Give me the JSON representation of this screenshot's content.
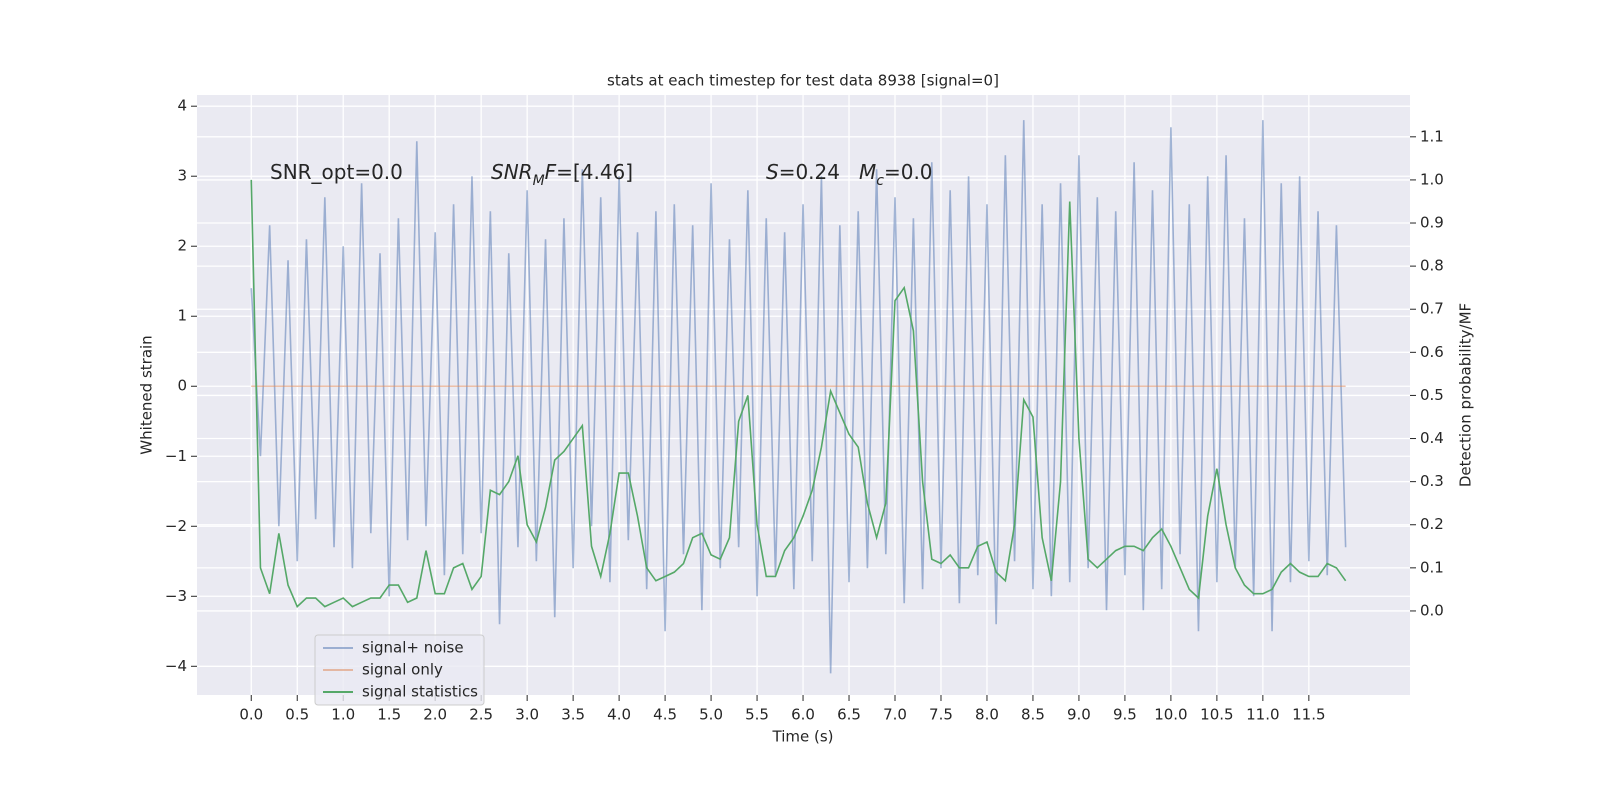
{
  "chart_data": {
    "type": "line",
    "title": "stats at each timestep for test data 8938 [signal=0]",
    "xlabel": "Time (s)",
    "ylabel": "Whitened strain",
    "y2label": "Detection probability/MF",
    "annotations": [
      [
        {
          "text": "SNR_opt=0.0",
          "style": "normal"
        }
      ],
      [
        {
          "text": "SNR",
          "style": "italic"
        },
        {
          "text": "M",
          "style": "sub"
        },
        {
          "text": "F",
          "style": "italic"
        },
        {
          "text": "=[4.46]",
          "style": "normal"
        }
      ],
      [
        {
          "text": "S",
          "style": "italic"
        },
        {
          "text": "=0.24",
          "style": "normal"
        }
      ],
      [
        {
          "text": "M",
          "style": "italic"
        },
        {
          "text": "c",
          "style": "sub"
        },
        {
          "text": "=0.0",
          "style": "normal"
        }
      ]
    ],
    "x": [
      0.0,
      0.1,
      0.2,
      0.3,
      0.4,
      0.5,
      0.6,
      0.7,
      0.8,
      0.9,
      1.0,
      1.1,
      1.2,
      1.3,
      1.4,
      1.5,
      1.6,
      1.7,
      1.8,
      1.9,
      2.0,
      2.1,
      2.2,
      2.3,
      2.4,
      2.5,
      2.6,
      2.7,
      2.8,
      2.9,
      3.0,
      3.1,
      3.2,
      3.3,
      3.4,
      3.5,
      3.6,
      3.7,
      3.8,
      3.9,
      4.0,
      4.1,
      4.2,
      4.3,
      4.4,
      4.5,
      4.6,
      4.7,
      4.8,
      4.9,
      5.0,
      5.1,
      5.2,
      5.3,
      5.4,
      5.5,
      5.6,
      5.7,
      5.8,
      5.9,
      6.0,
      6.1,
      6.2,
      6.3,
      6.4,
      6.5,
      6.6,
      6.7,
      6.8,
      6.9,
      7.0,
      7.1,
      7.2,
      7.3,
      7.4,
      7.5,
      7.6,
      7.7,
      7.8,
      7.9,
      8.0,
      8.1,
      8.2,
      8.3,
      8.4,
      8.5,
      8.6,
      8.7,
      8.8,
      8.9,
      9.0,
      9.1,
      9.2,
      9.3,
      9.4,
      9.5,
      9.6,
      9.7,
      9.8,
      9.9,
      10.0,
      10.1,
      10.2,
      10.3,
      10.4,
      10.5,
      10.6,
      10.7,
      10.8,
      10.9,
      11.0,
      11.1,
      11.2,
      11.3,
      11.4,
      11.5,
      11.6,
      11.7,
      11.8,
      11.9
    ],
    "series": [
      {
        "name": "signal+ noise",
        "color": "#4c72b0",
        "opacity": 0.5,
        "values": [
          1.4,
          -1.0,
          2.3,
          -2.0,
          1.8,
          -2.5,
          2.1,
          -1.9,
          2.7,
          -2.3,
          2.0,
          -2.6,
          2.9,
          -2.1,
          1.9,
          -3.0,
          2.4,
          -2.2,
          3.5,
          -2.0,
          2.2,
          -2.7,
          2.6,
          -2.4,
          3.0,
          -2.1,
          2.5,
          -3.4,
          1.9,
          -2.3,
          2.8,
          -2.5,
          2.1,
          -3.3,
          2.4,
          -2.6,
          3.1,
          -2.0,
          2.7,
          -2.8,
          3.0,
          -2.2,
          2.2,
          -2.9,
          2.5,
          -3.5,
          2.6,
          -2.4,
          2.3,
          -3.2,
          2.9,
          -2.6,
          2.1,
          -2.3,
          2.8,
          -3.0,
          2.4,
          -2.7,
          2.2,
          -2.9,
          2.6,
          -2.5,
          3.0,
          -4.1,
          2.3,
          -2.8,
          2.5,
          -2.6,
          3.1,
          -2.4,
          2.7,
          -3.1,
          2.4,
          -2.9,
          3.2,
          -2.6,
          2.8,
          -3.1,
          3.0,
          -2.7,
          2.6,
          -3.4,
          3.3,
          -2.5,
          3.8,
          -2.9,
          2.6,
          -3.0,
          2.9,
          -2.8,
          3.3,
          -2.6,
          2.7,
          -3.2,
          2.5,
          -2.7,
          3.2,
          -3.2,
          2.8,
          -2.9,
          3.7,
          -2.4,
          2.6,
          -3.5,
          3.0,
          -2.8,
          3.3,
          -2.6,
          2.4,
          -3.0,
          3.8,
          -3.5,
          2.9,
          -2.8,
          3.0,
          -2.5,
          2.5,
          -2.7,
          2.3,
          -2.3
        ]
      },
      {
        "name": "signal only",
        "color": "#dd8452",
        "opacity": 0.5,
        "values": [
          0,
          0,
          0,
          0,
          0,
          0,
          0,
          0,
          0,
          0,
          0,
          0,
          0,
          0,
          0,
          0,
          0,
          0,
          0,
          0,
          0,
          0,
          0,
          0,
          0,
          0,
          0,
          0,
          0,
          0,
          0,
          0,
          0,
          0,
          0,
          0,
          0,
          0,
          0,
          0,
          0,
          0,
          0,
          0,
          0,
          0,
          0,
          0,
          0,
          0,
          0,
          0,
          0,
          0,
          0,
          0,
          0,
          0,
          0,
          0,
          0,
          0,
          0,
          0,
          0,
          0,
          0,
          0,
          0,
          0,
          0,
          0,
          0,
          0,
          0,
          0,
          0,
          0,
          0,
          0,
          0,
          0,
          0,
          0,
          0,
          0,
          0,
          0,
          0,
          0,
          0,
          0,
          0,
          0,
          0,
          0,
          0,
          0,
          0,
          0,
          0,
          0,
          0,
          0,
          0,
          0,
          0,
          0,
          0,
          0,
          0,
          0,
          0,
          0,
          0,
          0,
          0,
          0,
          0,
          0
        ]
      },
      {
        "name": "signal statistics",
        "color": "#55a868",
        "opacity": 1,
        "axis": "y2",
        "values": [
          1.0,
          0.1,
          0.04,
          0.18,
          0.06,
          0.01,
          0.03,
          0.03,
          0.01,
          0.02,
          0.03,
          0.01,
          0.02,
          0.03,
          0.03,
          0.06,
          0.06,
          0.02,
          0.03,
          0.14,
          0.04,
          0.04,
          0.1,
          0.11,
          0.05,
          0.08,
          0.28,
          0.27,
          0.3,
          0.36,
          0.2,
          0.16,
          0.24,
          0.35,
          0.37,
          0.4,
          0.43,
          0.15,
          0.08,
          0.18,
          0.32,
          0.32,
          0.22,
          0.1,
          0.07,
          0.08,
          0.09,
          0.11,
          0.17,
          0.18,
          0.13,
          0.12,
          0.17,
          0.44,
          0.5,
          0.2,
          0.08,
          0.08,
          0.14,
          0.17,
          0.22,
          0.28,
          0.38,
          0.51,
          0.46,
          0.41,
          0.38,
          0.25,
          0.17,
          0.25,
          0.72,
          0.75,
          0.65,
          0.3,
          0.12,
          0.11,
          0.13,
          0.1,
          0.1,
          0.15,
          0.16,
          0.09,
          0.07,
          0.2,
          0.49,
          0.45,
          0.17,
          0.07,
          0.3,
          0.95,
          0.4,
          0.12,
          0.1,
          0.12,
          0.14,
          0.15,
          0.15,
          0.14,
          0.17,
          0.19,
          0.15,
          0.1,
          0.05,
          0.03,
          0.22,
          0.33,
          0.2,
          0.1,
          0.06,
          0.04,
          0.04,
          0.05,
          0.09,
          0.11,
          0.09,
          0.08,
          0.08,
          0.11,
          0.1,
          0.07
        ]
      }
    ],
    "xlim": [
      -0.59,
      12.6
    ],
    "ylim": [
      -4.41,
      4.16
    ],
    "y2lim": [
      -0.195,
      1.197
    ],
    "xticks": [
      {
        "value": 0,
        "label": "0.0"
      },
      0.5,
      {
        "value": 1,
        "label": "1.0"
      },
      1.5,
      {
        "value": 2,
        "label": "2.0"
      },
      2.5,
      {
        "value": 3,
        "label": "3.0"
      },
      3.5,
      {
        "value": 4,
        "label": "4.0"
      },
      4.5,
      {
        "value": 5,
        "label": "5.0"
      },
      5.5,
      {
        "value": 6,
        "label": "6.0"
      },
      6.5,
      {
        "value": 7,
        "label": "7.0"
      },
      7.5,
      {
        "value": 8,
        "label": "8.0"
      },
      8.5,
      {
        "value": 9,
        "label": "9.0"
      },
      9.5,
      {
        "value": 10,
        "label": "10.0"
      },
      10.5,
      {
        "value": 11,
        "label": "11.0"
      },
      11.5
    ],
    "yticks": [
      {
        "value": -4,
        "label": "−4"
      },
      {
        "value": -3,
        "label": "−3"
      },
      {
        "value": -2,
        "label": "−2"
      },
      {
        "value": -1,
        "label": "−1"
      },
      0,
      1,
      2,
      3,
      4
    ],
    "y2ticks": [
      {
        "value": 0,
        "label": "0.0"
      },
      0.1,
      0.2,
      0.3,
      0.4,
      0.5,
      0.6,
      0.7,
      0.8,
      0.9,
      {
        "value": 1,
        "label": "1.0"
      },
      1.1
    ],
    "grid": true,
    "legend": "lower left"
  }
}
